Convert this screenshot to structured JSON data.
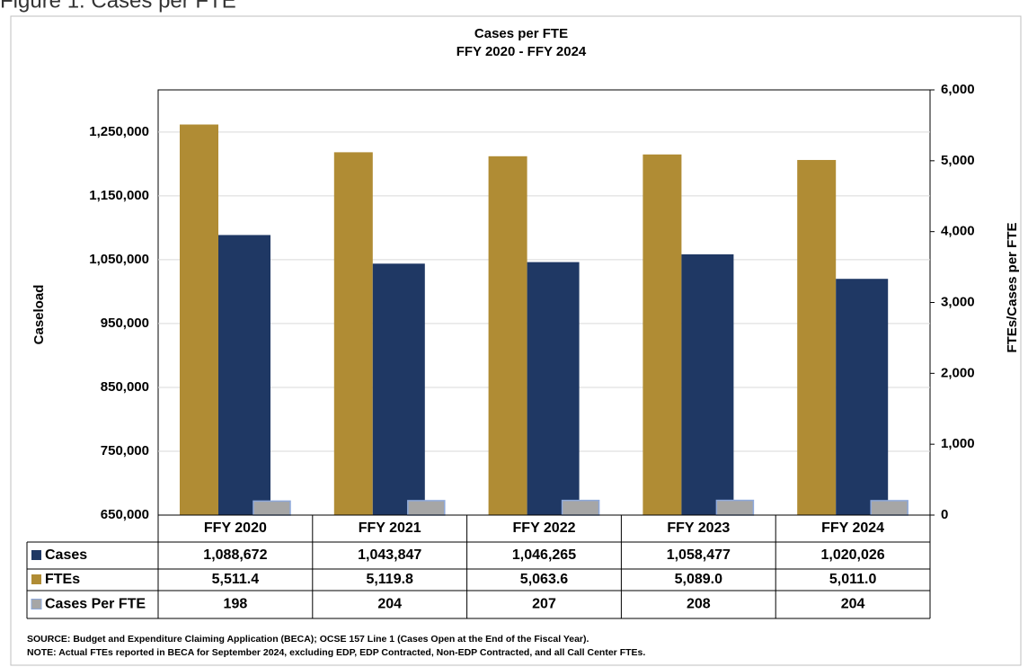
{
  "chart_data": {
    "type": "bar",
    "figure_title": "Figure 1: Cases per FTE",
    "title": "Cases per FTE",
    "subtitle": "FFY 2020 - FFY 2024",
    "y_label": "Caseload",
    "y2_label": "FTEs/Cases per FTE",
    "categories": [
      "FFY 2020",
      "FFY 2021",
      "FFY 2022",
      "FFY 2023",
      "FFY 2024"
    ],
    "series": [
      {
        "name": "Cases",
        "color": "#1f3864",
        "values": [
          1088672,
          1043847,
          1046265,
          1058477,
          1020026
        ],
        "value_labels": [
          "1,088,672",
          "1,043,847",
          "1,046,265",
          "1,058,477",
          "1,020,026"
        ]
      },
      {
        "name": "FTEs",
        "color": "#b08c34",
        "axis": "y2",
        "values": [
          5511.4,
          5119.8,
          5063.6,
          5089.0,
          5011.0
        ],
        "value_labels": [
          "5,511.4",
          "5,119.8",
          "5,063.6",
          "5,089.0",
          "5,011.0"
        ]
      },
      {
        "name": "Cases Per FTE",
        "color": "#a6a6a6",
        "axis": "y2",
        "values": [
          198,
          204,
          207,
          208,
          204
        ]
      }
    ],
    "ylim": [
      650000,
      1316000
    ],
    "yticks": [
      {
        "value": 650000,
        "label": "650,000"
      },
      {
        "value": 750000,
        "label": "750,000"
      },
      {
        "value": 850000,
        "label": "850,000"
      },
      {
        "value": 950000,
        "label": "950,000"
      },
      {
        "value": 1050000,
        "label": "1,050,000"
      },
      {
        "value": 1150000,
        "label": "1,150,000"
      },
      {
        "value": 1250000,
        "label": "1,250,000"
      }
    ],
    "y2lim": [
      0,
      6000
    ],
    "y2ticks": [
      0,
      {
        "value": 1000,
        "label": "1,000"
      },
      {
        "value": 2000,
        "label": "2,000"
      },
      {
        "value": 3000,
        "label": "3,000"
      },
      {
        "value": 4000,
        "label": "4,000"
      },
      {
        "value": 5000,
        "label": "5,000"
      },
      {
        "value": 6000,
        "label": "6,000"
      }
    ],
    "grid": true,
    "notes": [
      "SOURCE: Budget and Expenditure Claiming Application (BECA); OCSE 157 Line 1 (Cases Open at the End of the Fiscal Year).",
      "NOTE: Actual FTEs reported in BECA for September 2024, excluding EDP, EDP Contracted, Non-EDP Contracted, and all Call Center FTEs."
    ]
  }
}
